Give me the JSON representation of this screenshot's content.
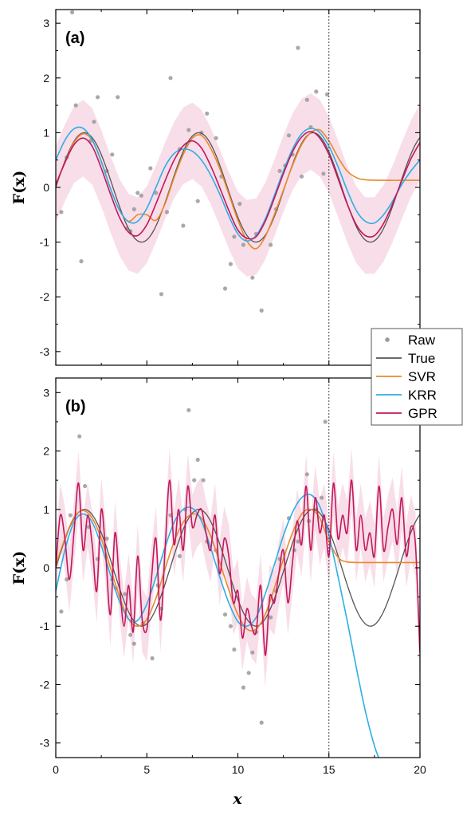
{
  "figure": {
    "xlabel": "x",
    "ylabel": "F(x)",
    "legend_placement": "right, between panels",
    "legend": [
      {
        "label": "Raw",
        "color": "#9a9a9a",
        "kind": "marker"
      },
      {
        "label": "True",
        "color": "#555555",
        "kind": "line"
      },
      {
        "label": "SVR",
        "color": "#e8892b",
        "kind": "line"
      },
      {
        "label": "KRR",
        "color": "#2eaee6",
        "kind": "line"
      },
      {
        "label": "GPR",
        "color": "#c2185b",
        "kind": "line"
      }
    ],
    "band_color": "#f5d3e1",
    "vline_color": "#444444"
  },
  "chart_data": [
    {
      "panel": "(a)",
      "type": "line",
      "xlim": [
        0,
        20
      ],
      "ylim": [
        -3.25,
        3.25
      ],
      "xticks": [],
      "yticks": [
        -3,
        -2,
        -1,
        0,
        1,
        2,
        3
      ],
      "vline_x": 15,
      "true_curve": {
        "function": "sin(x)",
        "x_range": [
          0,
          20
        ]
      },
      "raw_points": {
        "x": [
          0.3,
          0.9,
          1.4,
          1.9,
          2.3,
          2.8,
          3.4,
          3.9,
          4.3,
          4.7,
          5.2,
          5.8,
          6.3,
          6.8,
          7.3,
          7.8,
          8.3,
          8.8,
          9.3,
          9.8,
          10.3,
          10.8,
          11.3,
          11.8,
          12.3,
          12.8,
          13.3,
          13.8,
          14.3,
          14.7,
          0.6,
          1.1,
          2.1,
          3.1,
          4.1,
          5.5,
          6.1,
          7.0,
          8.0,
          9.1,
          10.1,
          11.0,
          12.1,
          13.0,
          14.0,
          14.9,
          4.5,
          9.6,
          12.6,
          13.5
        ],
        "y": [
          -0.45,
          3.2,
          -1.35,
          0.85,
          1.65,
          0.3,
          1.65,
          -0.75,
          -0.4,
          -0.15,
          0.35,
          -1.95,
          2.0,
          0.7,
          1.05,
          -0.25,
          1.35,
          0.9,
          -1.85,
          -0.9,
          -1.05,
          -1.65,
          -2.25,
          -1.05,
          0.3,
          0.95,
          2.55,
          1.6,
          1.75,
          0.25,
          0.55,
          1.5,
          1.2,
          0.6,
          -0.8,
          -0.1,
          -0.45,
          -0.7,
          1.0,
          0.2,
          -0.3,
          -0.85,
          -0.4,
          0.6,
          1.1,
          1.7,
          -0.1,
          -1.4,
          0.4,
          0.2
        ]
      },
      "series": [
        {
          "name": "True",
          "x_range": [
            0,
            20
          ],
          "function": "sin(x)"
        },
        {
          "name": "SVR",
          "x": [
            0,
            0.5,
            1,
            1.5,
            2,
            2.5,
            3,
            3.5,
            4,
            4.5,
            5,
            5.5,
            6,
            6.5,
            7,
            7.5,
            8,
            8.5,
            9,
            9.5,
            10,
            10.5,
            11,
            11.5,
            12,
            12.5,
            13,
            13.5,
            14,
            14.5,
            15,
            15.5,
            16,
            16.5,
            17,
            18,
            19,
            20
          ],
          "y": [
            0.05,
            0.45,
            0.82,
            0.98,
            0.86,
            0.48,
            -0.02,
            -0.42,
            -0.62,
            -0.5,
            -0.5,
            -0.6,
            -0.3,
            0.18,
            0.6,
            0.9,
            0.95,
            0.72,
            0.35,
            -0.12,
            -0.6,
            -0.98,
            -1.12,
            -0.9,
            -0.5,
            -0.05,
            0.4,
            0.78,
            1.0,
            1.05,
            0.85,
            0.55,
            0.3,
            0.18,
            0.14,
            0.13,
            0.13,
            0.13
          ]
        },
        {
          "name": "KRR",
          "x": [
            0,
            0.5,
            1,
            1.5,
            2,
            2.5,
            3,
            3.5,
            4,
            4.5,
            5,
            5.5,
            6,
            6.5,
            7,
            7.5,
            8,
            8.5,
            9,
            9.5,
            10,
            10.5,
            11,
            11.5,
            12,
            12.5,
            13,
            13.5,
            14,
            14.5,
            15,
            15.5,
            16,
            16.5,
            17,
            17.5,
            18,
            18.5,
            19,
            19.5,
            20
          ],
          "y": [
            0.5,
            0.86,
            1.07,
            1.08,
            0.87,
            0.47,
            -0.02,
            -0.42,
            -0.63,
            -0.62,
            -0.38,
            0.0,
            0.38,
            0.62,
            0.7,
            0.66,
            0.5,
            0.23,
            -0.12,
            -0.52,
            -0.85,
            -0.98,
            -0.88,
            -0.58,
            -0.15,
            0.3,
            0.7,
            0.98,
            1.08,
            1.0,
            0.75,
            0.38,
            -0.05,
            -0.42,
            -0.62,
            -0.65,
            -0.5,
            -0.25,
            0.05,
            0.3,
            0.5
          ]
        },
        {
          "name": "GPR",
          "band_width": 0.7,
          "x": [
            0,
            0.5,
            1,
            1.5,
            2,
            2.5,
            3,
            3.5,
            4,
            4.5,
            5,
            5.5,
            6,
            6.5,
            7,
            7.5,
            8,
            8.5,
            9,
            9.5,
            10,
            10.5,
            11,
            11.5,
            12,
            12.5,
            13,
            13.5,
            14,
            14.5,
            15,
            15.5,
            16,
            16.5,
            17,
            17.5,
            18,
            18.5,
            19,
            19.5,
            20
          ],
          "y": [
            0.05,
            0.45,
            0.78,
            0.9,
            0.75,
            0.35,
            -0.12,
            -0.55,
            -0.82,
            -0.88,
            -0.68,
            -0.3,
            0.12,
            0.5,
            0.76,
            0.85,
            0.72,
            0.4,
            0.0,
            -0.42,
            -0.78,
            -0.93,
            -0.9,
            -0.62,
            -0.2,
            0.25,
            0.65,
            0.92,
            1.02,
            0.9,
            0.6,
            0.16,
            -0.3,
            -0.68,
            -0.88,
            -0.88,
            -0.66,
            -0.3,
            0.12,
            0.52,
            0.82
          ]
        }
      ]
    },
    {
      "panel": "(b)",
      "type": "line",
      "xlim": [
        0,
        20
      ],
      "ylim": [
        -3.25,
        3.25
      ],
      "xticks": [
        0,
        5,
        10,
        15,
        20
      ],
      "yticks": [
        -3,
        -2,
        -1,
        0,
        1,
        2,
        3
      ],
      "vline_x": 15,
      "true_curve": {
        "function": "sin(x)",
        "x_range": [
          0,
          20
        ]
      },
      "raw_points": {
        "x": [
          0.3,
          0.8,
          1.3,
          1.8,
          2.3,
          2.8,
          3.3,
          3.8,
          4.3,
          4.8,
          5.3,
          5.8,
          6.3,
          6.8,
          7.3,
          7.8,
          8.3,
          8.8,
          9.3,
          9.8,
          10.3,
          10.8,
          11.3,
          11.8,
          12.3,
          12.8,
          13.3,
          13.8,
          14.3,
          14.8,
          0.6,
          1.6,
          3.1,
          4.1,
          5.6,
          7.1,
          8.1,
          9.6,
          10.6,
          12.1,
          13.1,
          14.6,
          7.6,
          11.0,
          13.9
        ],
        "y": [
          -0.75,
          0.9,
          2.25,
          0.7,
          0.15,
          0.5,
          -0.35,
          -0.45,
          -1.3,
          -0.95,
          -1.55,
          -0.7,
          0.9,
          0.2,
          2.7,
          1.85,
          0.45,
          0.3,
          -0.8,
          -1.4,
          -2.05,
          -1.45,
          -2.65,
          -0.85,
          0.15,
          0.85,
          0.45,
          1.6,
          1.0,
          2.5,
          -0.2,
          1.4,
          -0.2,
          -1.15,
          -0.3,
          1.0,
          1.5,
          -1.0,
          -1.8,
          -0.4,
          0.3,
          1.2,
          1.5,
          -1.1,
          0.8
        ]
      },
      "series": [
        {
          "name": "True",
          "x_range": [
            0,
            20
          ],
          "function": "sin(x)"
        },
        {
          "name": "SVR",
          "x": [
            0,
            0.5,
            1,
            1.5,
            2,
            2.5,
            3,
            3.5,
            4,
            4.5,
            5,
            5.5,
            6,
            6.5,
            7,
            7.5,
            8,
            8.5,
            9,
            9.5,
            10,
            10.5,
            11,
            11.5,
            12,
            12.5,
            13,
            13.5,
            14,
            14.5,
            15,
            15.5,
            16,
            17,
            18,
            19,
            20
          ],
          "y": [
            0.05,
            0.5,
            0.86,
            0.98,
            0.85,
            0.5,
            0.0,
            -0.5,
            -0.88,
            -1.0,
            -0.88,
            -0.52,
            -0.02,
            0.45,
            0.78,
            0.92,
            0.85,
            0.55,
            0.1,
            -0.38,
            -0.8,
            -1.05,
            -1.05,
            -0.8,
            -0.35,
            0.15,
            0.6,
            0.92,
            1.0,
            0.85,
            0.45,
            0.18,
            0.1,
            0.09,
            0.09,
            0.09,
            0.09
          ]
        },
        {
          "name": "KRR",
          "x": [
            0,
            0.5,
            1,
            1.5,
            2,
            2.5,
            3,
            3.5,
            4,
            4.5,
            5,
            5.5,
            6,
            6.5,
            7,
            7.5,
            8,
            8.5,
            9,
            9.5,
            10,
            10.5,
            11,
            11.5,
            12,
            12.5,
            13,
            13.5,
            14,
            14.5,
            15,
            15.5,
            16,
            16.5,
            17,
            17.5,
            17.8
          ],
          "y": [
            -0.4,
            0.3,
            0.78,
            0.92,
            0.78,
            0.38,
            -0.12,
            -0.58,
            -0.88,
            -0.9,
            -0.62,
            -0.16,
            0.35,
            0.78,
            1.0,
            1.02,
            0.8,
            0.35,
            -0.15,
            -0.6,
            -0.92,
            -1.0,
            -0.85,
            -0.45,
            0.05,
            0.55,
            0.95,
            1.2,
            1.25,
            1.05,
            0.55,
            -0.15,
            -0.9,
            -1.7,
            -2.45,
            -3.05,
            -3.3
          ]
        },
        {
          "name": "GPR",
          "band_width": 0.55,
          "x": [
            0,
            0.25,
            0.5,
            0.75,
            1,
            1.25,
            1.5,
            1.75,
            2,
            2.25,
            2.5,
            2.75,
            3,
            3.25,
            3.5,
            3.75,
            4,
            4.25,
            4.5,
            4.75,
            5,
            5.25,
            5.5,
            5.75,
            6,
            6.25,
            6.5,
            6.75,
            7,
            7.25,
            7.5,
            7.75,
            8,
            8.25,
            8.5,
            8.75,
            9,
            9.25,
            9.5,
            9.75,
            10,
            10.25,
            10.5,
            10.75,
            11,
            11.25,
            11.5,
            11.75,
            12,
            12.25,
            12.5,
            12.75,
            13,
            13.25,
            13.5,
            13.75,
            14,
            14.25,
            14.5,
            14.75,
            15,
            15.25,
            15.5,
            15.75,
            16,
            16.25,
            16.5,
            16.75,
            17,
            17.25,
            17.5,
            17.75,
            18,
            18.25,
            18.5,
            18.75,
            19,
            19.25,
            19.5,
            19.75,
            20
          ],
          "y": [
            0.0,
            0.9,
            0.5,
            -0.2,
            0.6,
            1.45,
            0.3,
            0.9,
            0.4,
            -0.4,
            1.0,
            0.2,
            -0.8,
            0.6,
            -0.3,
            -1.0,
            -0.3,
            -1.1,
            0.2,
            -0.9,
            -1.05,
            -0.2,
            0.5,
            -0.9,
            0.3,
            1.5,
            0.4,
            1.0,
            0.3,
            1.4,
            0.7,
            0.9,
            1.0,
            0.6,
            0.3,
            0.9,
            -0.1,
            0.5,
            0.2,
            -0.6,
            -0.4,
            -1.2,
            -0.7,
            -1.0,
            -1.1,
            -0.3,
            -1.5,
            -0.5,
            -0.6,
            -0.1,
            0.3,
            -0.6,
            0.1,
            0.8,
            0.4,
            1.4,
            0.3,
            1.2,
            0.6,
            0.9,
            0.2,
            1.45,
            0.5,
            0.9,
            0.6,
            1.5,
            0.3,
            0.9,
            0.3,
            0.6,
            0.2,
            1.4,
            0.3,
            0.7,
            1.0,
            0.4,
            1.2,
            0.2,
            0.7,
            0.4,
            -1.45
          ]
        }
      ]
    }
  ]
}
